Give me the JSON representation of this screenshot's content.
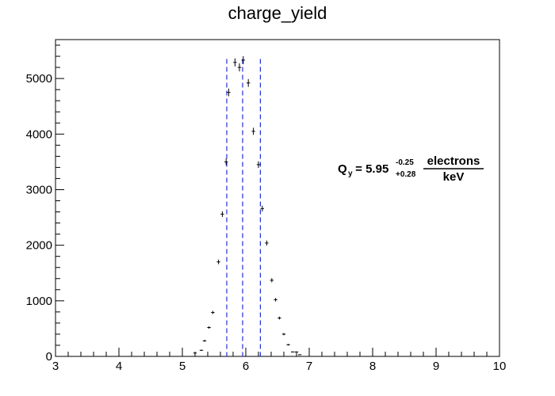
{
  "chart_data": {
    "type": "scatter",
    "title": "charge_yield",
    "xlabel": "",
    "ylabel": "",
    "xlim": [
      3,
      10
    ],
    "ylim": [
      0,
      5700
    ],
    "x_ticks": [
      3,
      4,
      5,
      6,
      7,
      8,
      9,
      10
    ],
    "y_ticks": [
      0,
      1000,
      2000,
      3000,
      4000,
      5000
    ],
    "grid": false,
    "bin_width": 0.1,
    "points": [
      {
        "x": 5.2,
        "y": 60
      },
      {
        "x": 5.3,
        "y": 110
      },
      {
        "x": 5.35,
        "y": 280
      },
      {
        "x": 5.42,
        "y": 520
      },
      {
        "x": 5.48,
        "y": 790
      },
      {
        "x": 5.57,
        "y": 1700
      },
      {
        "x": 5.63,
        "y": 2560
      },
      {
        "x": 5.69,
        "y": 3500
      },
      {
        "x": 5.73,
        "y": 4750
      },
      {
        "x": 5.83,
        "y": 5290
      },
      {
        "x": 5.9,
        "y": 5200
      },
      {
        "x": 5.96,
        "y": 5330
      },
      {
        "x": 6.04,
        "y": 4920
      },
      {
        "x": 6.12,
        "y": 4050
      },
      {
        "x": 6.2,
        "y": 3450
      },
      {
        "x": 6.26,
        "y": 2660
      },
      {
        "x": 6.33,
        "y": 2040
      },
      {
        "x": 6.41,
        "y": 1370
      },
      {
        "x": 6.47,
        "y": 1020
      },
      {
        "x": 6.53,
        "y": 690
      },
      {
        "x": 6.6,
        "y": 400
      },
      {
        "x": 6.67,
        "y": 210
      },
      {
        "x": 6.74,
        "y": 80
      },
      {
        "x": 6.8,
        "y": 80
      },
      {
        "x": 6.85,
        "y": 30
      }
    ],
    "vertical_lines": [
      {
        "x": 5.7,
        "style": "dashed",
        "color": "#1f2fd6"
      },
      {
        "x": 5.95,
        "style": "dashed",
        "color": "#1f2fd6"
      },
      {
        "x": 6.23,
        "style": "dashed",
        "color": "#1f2fd6"
      }
    ],
    "annotation": {
      "prefix": "Q",
      "prefix_sub": "y",
      "equals_value": " = 5.95",
      "sup": "-0.25",
      "sub": "+0.28",
      "numerator": "electrons",
      "denominator": "keV"
    }
  }
}
